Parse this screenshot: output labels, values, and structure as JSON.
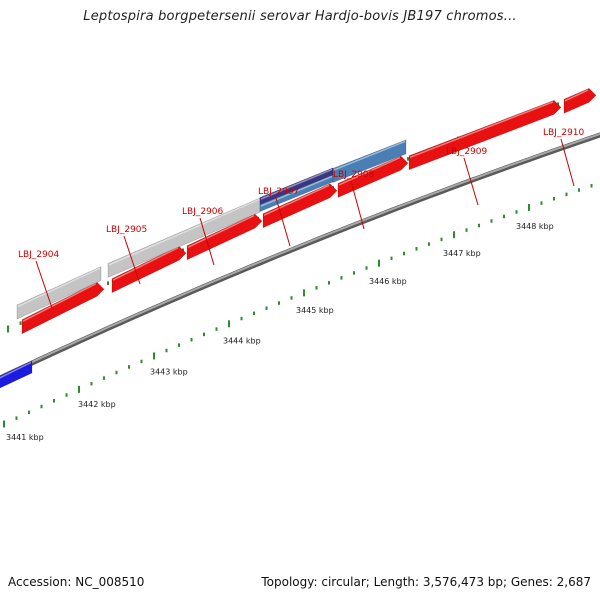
{
  "title": "Leptospira borgpetersenii serovar Hardjo-bovis JB197 chromos...",
  "footer": {
    "accession": "Accession: NC_008510",
    "summary": "Topology: circular; Length: 3,576,473 bp; Genes: 2,687"
  },
  "colors": {
    "cds": "#e81010",
    "gene_light": "#c4c4c4",
    "gene_navy": "#3b3683",
    "gene_steel": "#4a7fb5",
    "other_blue": "#1c1ce0",
    "tick": "#2e8b2e",
    "backbone": "#777777",
    "label": "#cc0000"
  },
  "scale": {
    "ruler_labels": [
      "3441 kbp",
      "3442 kbp",
      "3443 kbp",
      "3444 kbp",
      "3445 kbp",
      "3446 kbp",
      "3447 kbp",
      "3448 kbp"
    ],
    "ruler_positions_kbp": [
      3441,
      3442,
      3443,
      3444,
      3445,
      3446,
      3447,
      3448
    ]
  },
  "genes": [
    {
      "name": "LBJ_2904"
    },
    {
      "name": "LBJ_2905"
    },
    {
      "name": "LBJ_2906"
    },
    {
      "name": "LBJ_2907"
    },
    {
      "name": "LBJ_2908"
    },
    {
      "name": "LBJ_2909"
    },
    {
      "name": "LBJ_2910"
    }
  ]
}
